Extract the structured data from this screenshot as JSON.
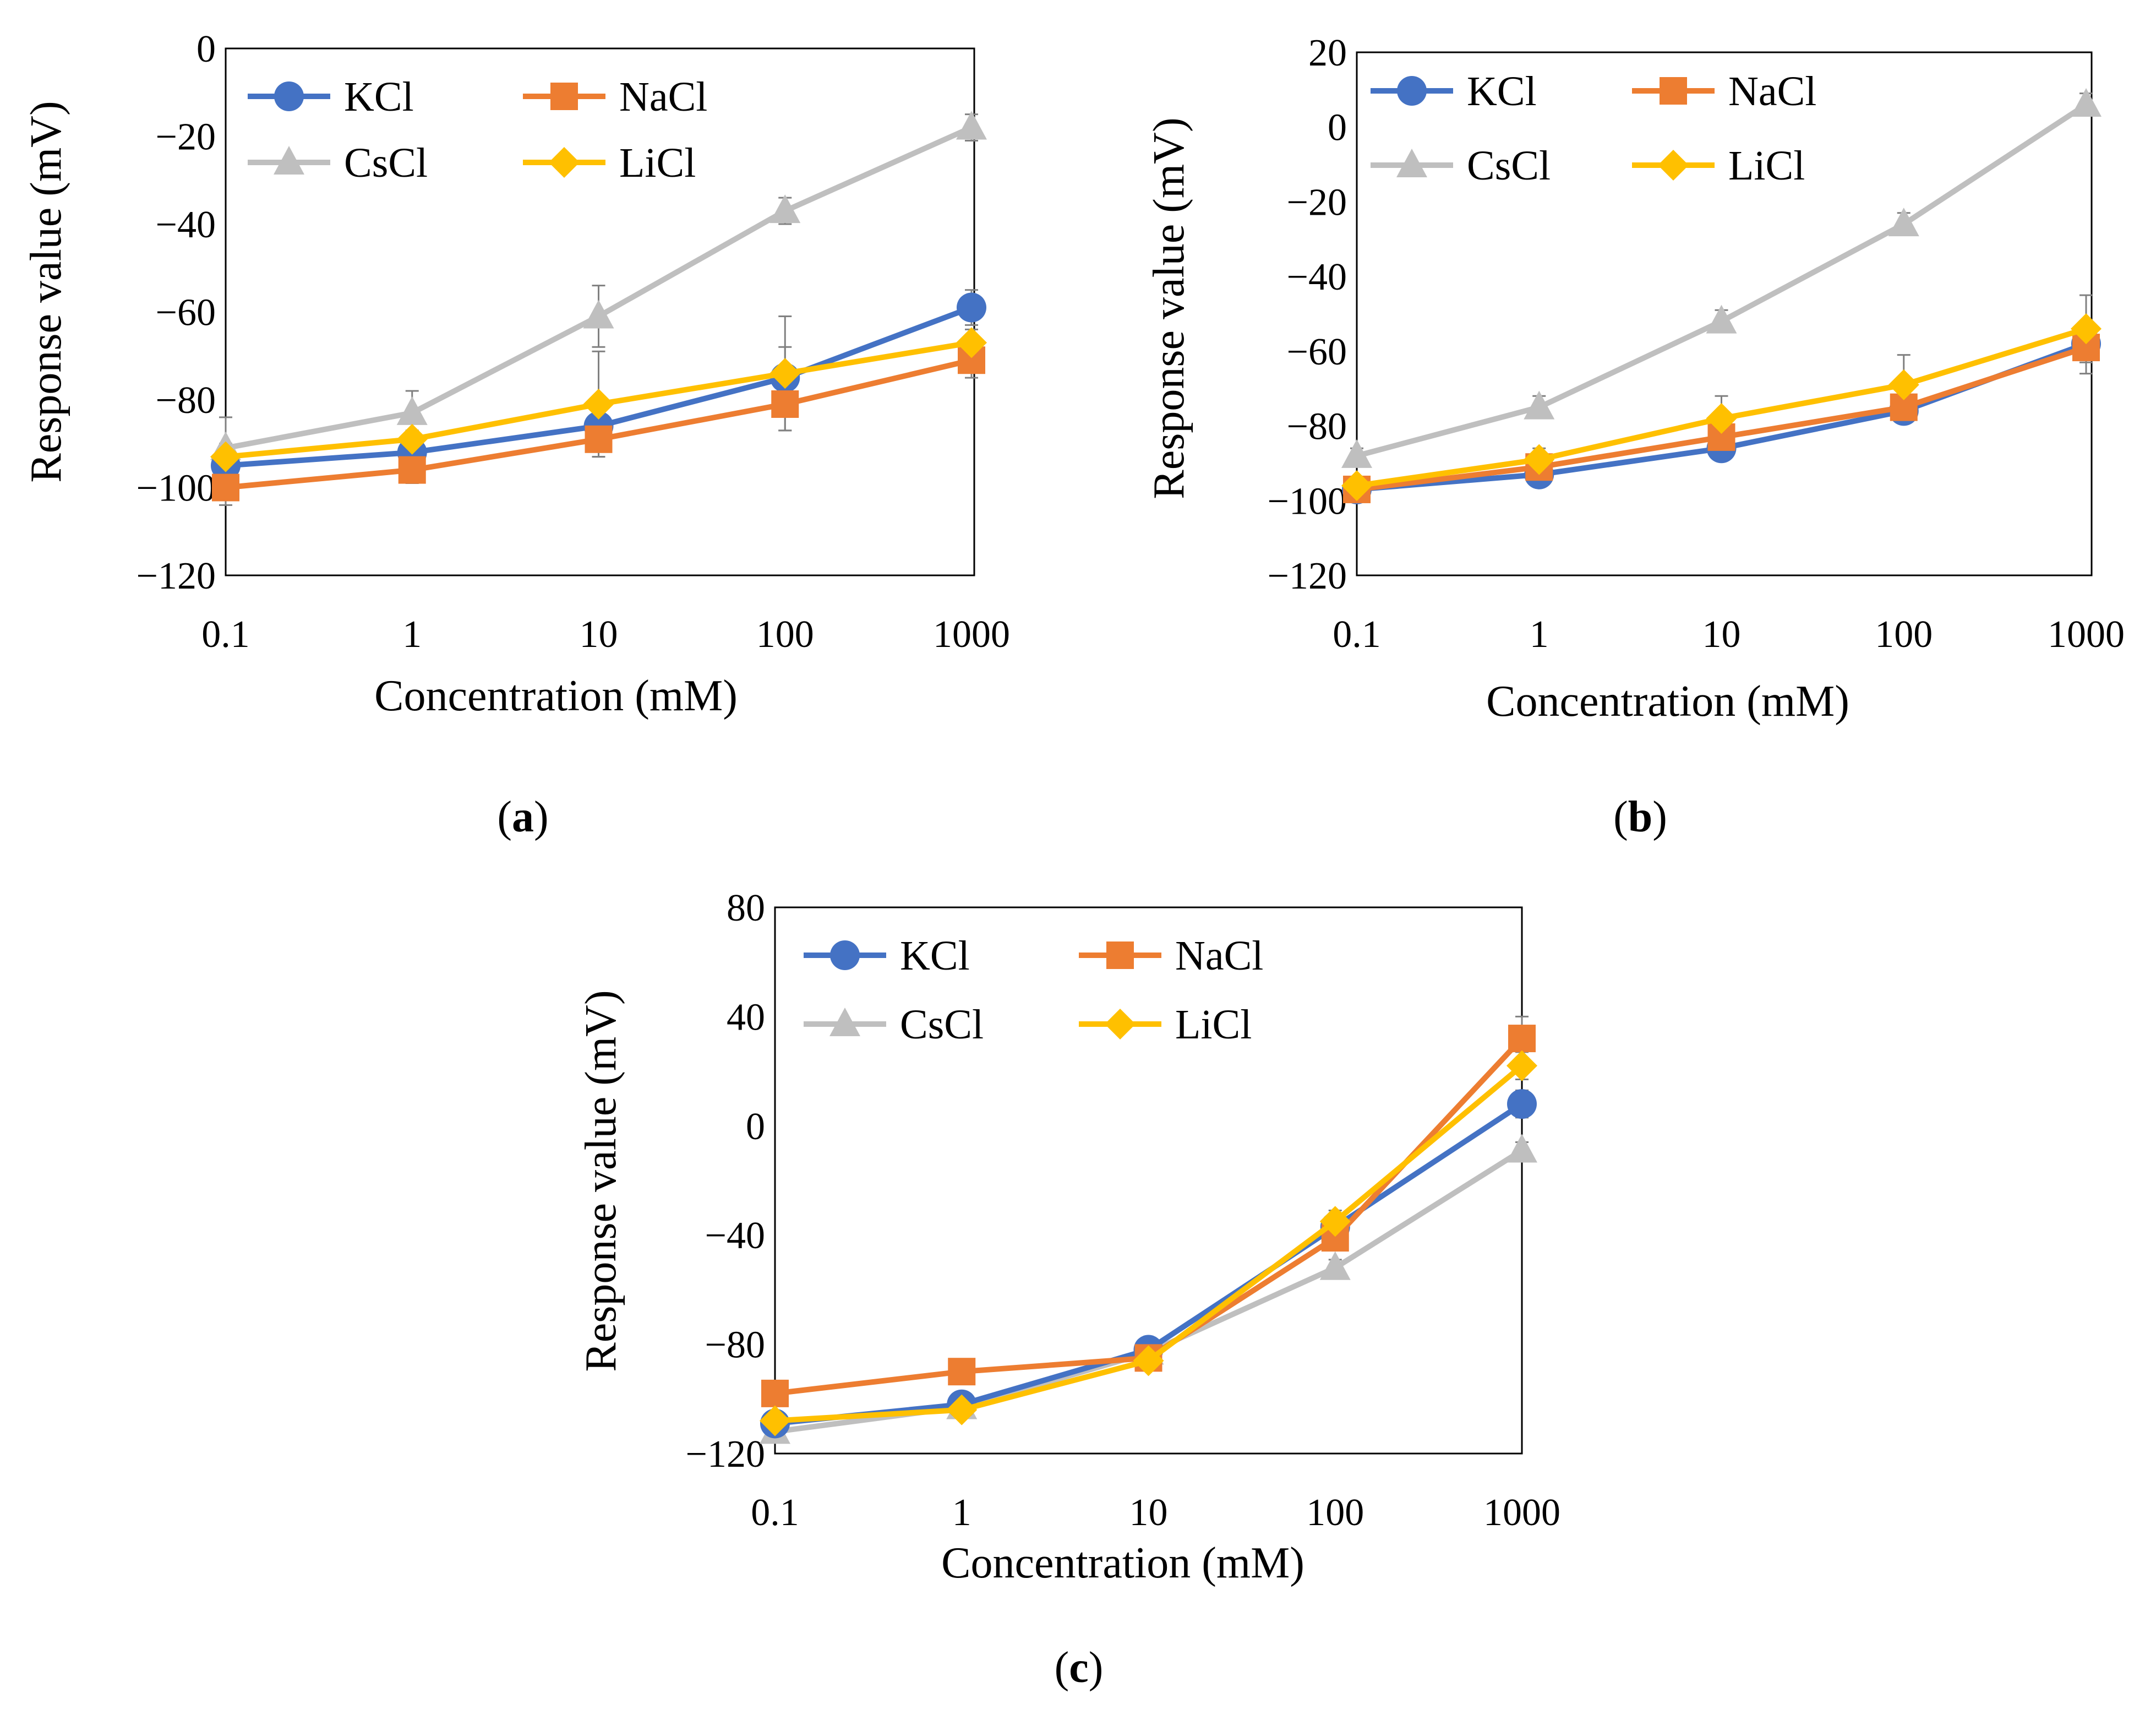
{
  "colors": {
    "KCl": "#4472C4",
    "NaCl": "#ED7D31",
    "CsCl": "#BFBFBF",
    "LiCl": "#FFC000",
    "errorbar": "#808080"
  },
  "panels": [
    {
      "letter": "a",
      "open": "(",
      "close": ")"
    },
    {
      "letter": "b",
      "open": "(",
      "close": ")"
    },
    {
      "letter": "c",
      "open": "(",
      "close": ")"
    }
  ],
  "chart_data": [
    {
      "type": "line",
      "panel": "a",
      "xlabel": "Concentration (mM)",
      "ylabel": "Response value (mV)",
      "categories": [
        "0.1",
        "1",
        "10",
        "100",
        "1000"
      ],
      "ylim": [
        -120,
        0
      ],
      "yticks": [
        0,
        -20,
        -40,
        -60,
        -80,
        -100,
        -120
      ],
      "ytick_labels": [
        "0",
        "−20",
        "−40",
        "−60",
        "−80",
        "−100",
        "−120"
      ],
      "legend": [
        "KCl",
        "NaCl",
        "CsCl",
        "LiCl"
      ],
      "series": [
        {
          "name": "KCl",
          "marker": "circle",
          "values": [
            -95,
            -92,
            -86,
            -75,
            -59
          ],
          "errors": [
            3,
            3,
            4,
            7,
            4
          ]
        },
        {
          "name": "NaCl",
          "marker": "square",
          "values": [
            -100,
            -96,
            -89,
            -81,
            -71
          ],
          "errors": [
            4,
            3,
            4,
            6,
            4
          ]
        },
        {
          "name": "CsCl",
          "marker": "triangle",
          "values": [
            -91,
            -83,
            -61,
            -37,
            -18
          ],
          "errors": [
            7,
            5,
            7,
            3,
            3
          ]
        },
        {
          "name": "LiCl",
          "marker": "diamond",
          "values": [
            -93,
            -89,
            -81,
            -74,
            -67
          ],
          "errors": [
            3,
            2,
            12,
            13,
            3
          ]
        }
      ]
    },
    {
      "type": "line",
      "panel": "b",
      "xlabel": "Concentration (mM)",
      "ylabel": "Response value (mV)",
      "categories": [
        "0.1",
        "1",
        "10",
        "100",
        "1000"
      ],
      "ylim": [
        -120,
        20
      ],
      "yticks": [
        20,
        0,
        -20,
        -40,
        -60,
        -80,
        -100,
        -120
      ],
      "ytick_labels": [
        "20",
        "0",
        "−20",
        "−40",
        "−60",
        "−80",
        "−100",
        "−120"
      ],
      "legend": [
        "KCl",
        "NaCl",
        "CsCl",
        "LiCl"
      ],
      "series": [
        {
          "name": "KCl",
          "marker": "circle",
          "values": [
            -97,
            -93,
            -86,
            -76,
            -58
          ],
          "errors": [
            2,
            3,
            3,
            3,
            4
          ]
        },
        {
          "name": "NaCl",
          "marker": "square",
          "values": [
            -97,
            -91,
            -83,
            -75,
            -59
          ],
          "errors": [
            2,
            3,
            3,
            4,
            7
          ]
        },
        {
          "name": "CsCl",
          "marker": "triangle",
          "values": [
            -88,
            -75,
            -52,
            -26,
            6
          ],
          "errors": [
            2,
            3,
            3,
            3,
            3
          ]
        },
        {
          "name": "LiCl",
          "marker": "diamond",
          "values": [
            -96,
            -89,
            -78,
            -69,
            -54
          ],
          "errors": [
            2,
            3,
            6,
            8,
            9
          ]
        }
      ]
    },
    {
      "type": "line",
      "panel": "c",
      "xlabel": "Concentration (mM)",
      "ylabel": "Response value (mV)",
      "categories": [
        "0.1",
        "1",
        "10",
        "100",
        "1000"
      ],
      "ylim": [
        -120,
        80
      ],
      "yticks": [
        80,
        40,
        0,
        -40,
        -80,
        -120
      ],
      "ytick_labels": [
        "80",
        "40",
        "0",
        "−40",
        "−80",
        "−120"
      ],
      "legend": [
        "KCl",
        "NaCl",
        "CsCl",
        "LiCl"
      ],
      "series": [
        {
          "name": "KCl",
          "marker": "circle",
          "values": [
            -109,
            -102,
            -82,
            -37,
            8
          ],
          "errors": [
            2,
            2,
            2,
            4,
            5
          ]
        },
        {
          "name": "NaCl",
          "marker": "square",
          "values": [
            -98,
            -90,
            -85,
            -41,
            32
          ],
          "errors": [
            2,
            2,
            2,
            4,
            8
          ]
        },
        {
          "name": "CsCl",
          "marker": "triangle",
          "values": [
            -112,
            -103,
            -83,
            -52,
            -9
          ],
          "errors": [
            2,
            2,
            2,
            3,
            3
          ]
        },
        {
          "name": "LiCl",
          "marker": "diamond",
          "values": [
            -108,
            -104,
            -86,
            -35,
            22
          ],
          "errors": [
            2,
            2,
            2,
            4,
            5
          ]
        }
      ]
    }
  ]
}
